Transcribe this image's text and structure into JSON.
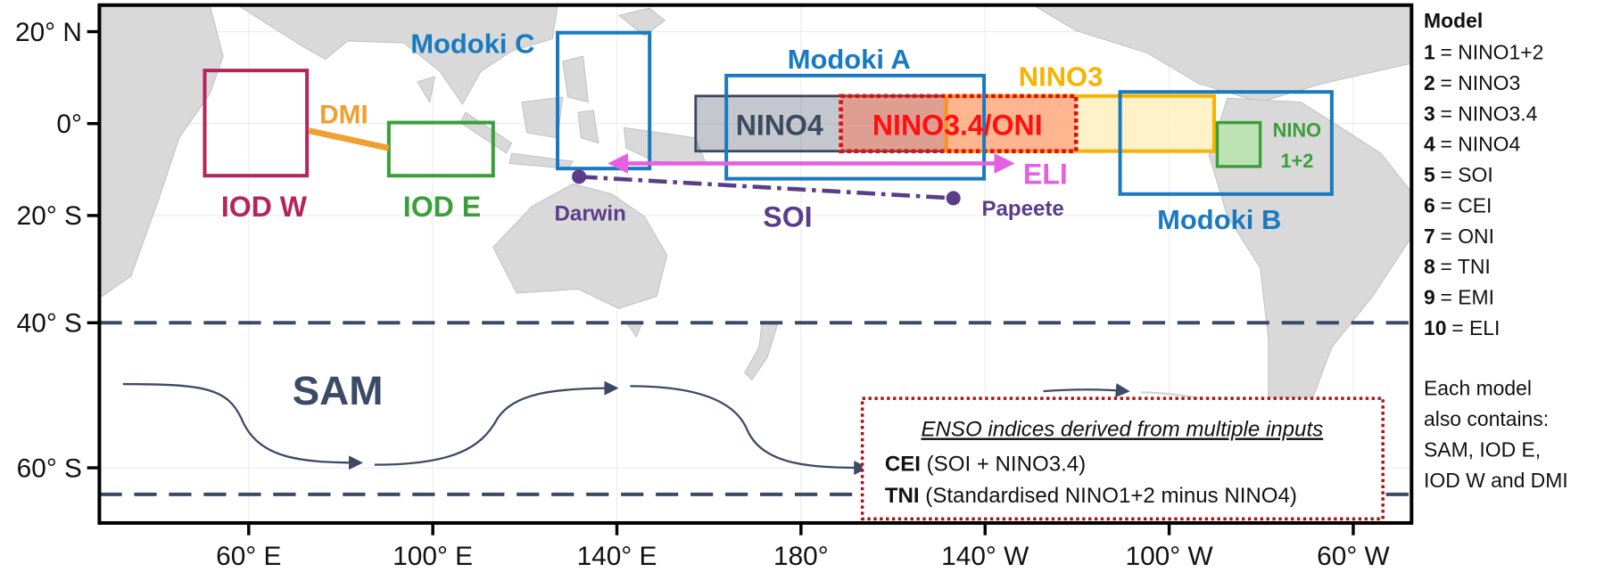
{
  "map": {
    "lat_labels": [
      "20° N",
      "0°",
      "20° S",
      "40° S",
      "60° S"
    ],
    "lon_labels": [
      "60° E",
      "100° E",
      "140° E",
      "180°",
      "140° W",
      "100° W",
      "60° W"
    ],
    "regions": {
      "iod_w": "IOD W",
      "iod_e": "IOD E",
      "dmi": "DMI",
      "modoki_c": "Modoki C",
      "modoki_a": "Modoki A",
      "modoki_b": "Modoki B",
      "nino4": "NINO4",
      "nino34": "NINO3.4/ONI",
      "nino3": "NINO3",
      "nino12_line1": "NINO",
      "nino12_line2": "1+2",
      "eli": "ELI",
      "soi": "SOI",
      "darwin": "Darwin",
      "papeete": "Papeete",
      "sam": "SAM"
    },
    "inset": {
      "title": "ENSO indices derived from multiple inputs",
      "rows": [
        {
          "bold": "CEI",
          "text": "(SOI + NINO3.4)"
        },
        {
          "bold": "TNI",
          "text": "(Standardised NINO1+2 minus NINO4)"
        }
      ]
    }
  },
  "legend": {
    "title": "Model",
    "items": [
      {
        "number": "1",
        "text": "= NINO1+2"
      },
      {
        "number": "2",
        "text": "= NINO3"
      },
      {
        "number": "3",
        "text": "= NINO3.4"
      },
      {
        "number": "4",
        "text": "= NINO4"
      },
      {
        "number": "5",
        "text": "= SOI"
      },
      {
        "number": "6",
        "text": "= CEI"
      },
      {
        "number": "7",
        "text": "= ONI"
      },
      {
        "number": "8",
        "text": "= TNI"
      },
      {
        "number": "9",
        "text": "= EMI"
      },
      {
        "number": "10",
        "text": "= ELI"
      }
    ],
    "note": [
      "Each model",
      "also contains:",
      "SAM, IOD E,",
      "IOD W and DMI"
    ]
  }
}
